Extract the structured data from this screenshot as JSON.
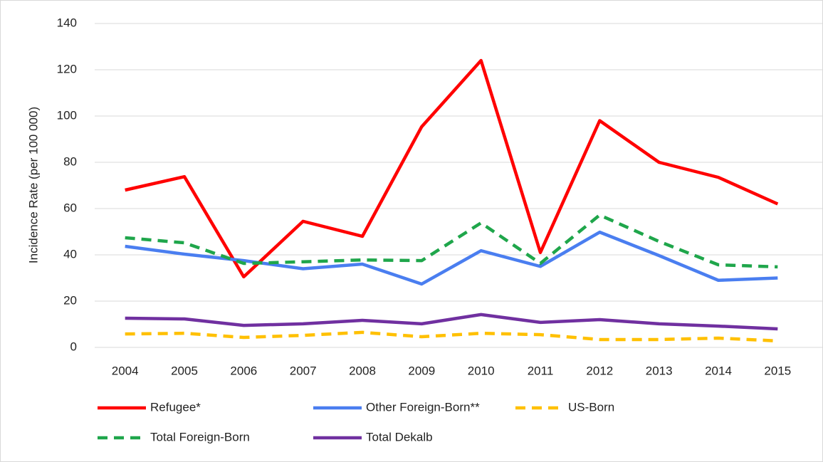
{
  "chart_data": {
    "type": "line",
    "y_label": "Incidence Rate (per 100 000)",
    "categories": [
      "2004",
      "2005",
      "2006",
      "2007",
      "2008",
      "2009",
      "2010",
      "2011",
      "2012",
      "2013",
      "2014",
      "2015"
    ],
    "series": [
      {
        "name": "Refugee*",
        "color": "#ff0000",
        "dashed": false,
        "values": [
          68,
          73.8,
          30.5,
          54.5,
          48,
          95.4,
          124,
          41,
          98,
          80,
          73.5,
          62
        ]
      },
      {
        "name": "Other Foreign-Born**",
        "color": "#4a7ef0",
        "dashed": false,
        "values": [
          43.7,
          40.3,
          37.5,
          34,
          36,
          27.4,
          41.8,
          35,
          49.8,
          39.7,
          29,
          30
        ]
      },
      {
        "name": "US-Born",
        "color": "#ffc000",
        "dashed": true,
        "values": [
          5.8,
          6.1,
          4.3,
          5.2,
          6.5,
          4.6,
          6.1,
          5.5,
          3.4,
          3.4,
          4,
          2.8
        ]
      },
      {
        "name": "Total Foreign-Born",
        "color": "#1fa64b",
        "dashed": true,
        "values": [
          47.4,
          45.2,
          36.3,
          37,
          37.8,
          37.5,
          53.8,
          36.3,
          57.2,
          45.8,
          35.7,
          34.8
        ]
      },
      {
        "name": "Total Dekalb",
        "color": "#7030a0",
        "dashed": false,
        "values": [
          12.6,
          12.3,
          9.5,
          10.2,
          11.7,
          10.2,
          14.2,
          10.8,
          12,
          10.2,
          9.2,
          8
        ]
      }
    ],
    "ylim": [
      0,
      140
    ],
    "yticks": [
      0,
      20,
      40,
      60,
      80,
      100,
      120,
      140
    ],
    "grid": true
  }
}
